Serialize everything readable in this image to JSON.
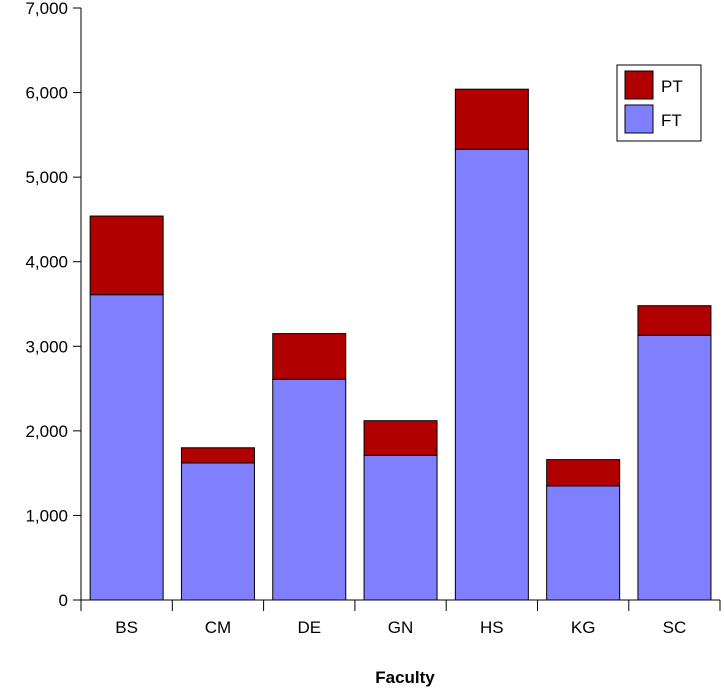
{
  "chart_data": {
    "type": "bar",
    "stacked": true,
    "title": "",
    "xlabel": "Faculty",
    "ylabel": "",
    "categories": [
      "BS",
      "CM",
      "DE",
      "GN",
      "HS",
      "KG",
      "SC"
    ],
    "series": [
      {
        "name": "FT",
        "color": "#8080ff",
        "values": [
          3610,
          1620,
          2610,
          1710,
          5330,
          1350,
          3130
        ]
      },
      {
        "name": "PT",
        "color": "#b00000",
        "values": [
          930,
          180,
          540,
          410,
          710,
          310,
          350
        ]
      }
    ],
    "ylim": [
      0,
      7000
    ],
    "yticks": [
      0,
      1000,
      2000,
      3000,
      4000,
      5000,
      6000,
      7000
    ],
    "ytick_labels": [
      "0",
      "1,000",
      "2,000",
      "3,000",
      "4,000",
      "5,000",
      "6,000",
      "7,000"
    ],
    "grid": false,
    "legend": {
      "position": "top-right",
      "entries": [
        "PT",
        "FT"
      ]
    }
  }
}
